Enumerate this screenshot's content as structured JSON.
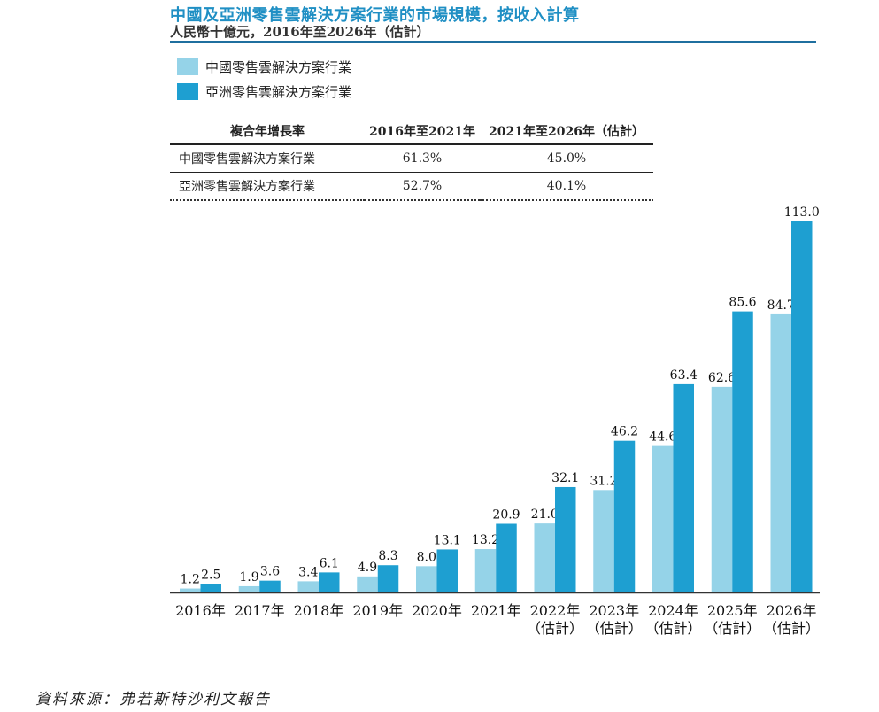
{
  "header": {
    "title": "中國及亞洲零售雲解決方案行業的市場規模，按收入計算",
    "subtitle": "人民幣十億元，2016年至2026年（估計）"
  },
  "legend": {
    "china": "中國零售雲解決方案行業",
    "asia": "亞洲零售雲解決方案行業"
  },
  "colors": {
    "china": "#95d3e8",
    "asia": "#1e9fd1",
    "title": "#1f8fc4"
  },
  "cagr_table": {
    "header": [
      "複合年增長率",
      "2016年至2021年",
      "2021年至2026年（估計）"
    ],
    "rows": [
      [
        "中國零售雲解決方案行業",
        "61.3%",
        "45.0%"
      ],
      [
        "亞洲零售雲解決方案行業",
        "52.7%",
        "40.1%"
      ]
    ]
  },
  "chart_data": {
    "type": "bar",
    "categories": [
      [
        "2016年"
      ],
      [
        "2017年"
      ],
      [
        "2018年"
      ],
      [
        "2019年"
      ],
      [
        "2020年"
      ],
      [
        "2021年"
      ],
      [
        "2022年",
        "（估計）"
      ],
      [
        "2023年",
        "（估計）"
      ],
      [
        "2024年",
        "（估計）"
      ],
      [
        "2025年",
        "（估計）"
      ],
      [
        "2026年",
        "（估計）"
      ]
    ],
    "series": [
      {
        "name": "中國零售雲解決方案行業",
        "values": [
          1.2,
          1.9,
          3.4,
          4.9,
          8.0,
          13.2,
          21.0,
          31.2,
          44.6,
          62.6,
          84.7
        ],
        "labels": [
          "1.2",
          "1.9",
          "3.4",
          "4.9",
          "8.0",
          "13.2",
          "21.0",
          "31.2",
          "44.6",
          "62.6",
          "84.7"
        ]
      },
      {
        "name": "亞洲零售雲解決方案行業",
        "values": [
          2.5,
          3.6,
          6.1,
          8.3,
          13.1,
          20.9,
          32.1,
          46.2,
          63.4,
          85.6,
          113.0
        ],
        "labels": [
          "2.5",
          "3.6",
          "6.1",
          "8.3",
          "13.1",
          "20.9",
          "32.1",
          "46.2",
          "63.4",
          "85.6",
          "113.0"
        ]
      }
    ],
    "ylim": [
      0,
      113.0
    ]
  },
  "footer": {
    "source": "資料來源：弗若斯特沙利文報告"
  }
}
